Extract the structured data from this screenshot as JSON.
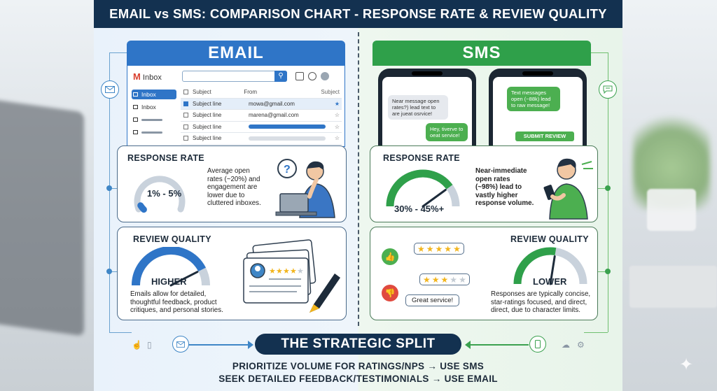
{
  "title": "EMAIL vs SMS: COMPARISON CHART - RESPONSE RATE & REVIEW QUALITY",
  "colors": {
    "navy": "#133150",
    "email_blue": "#2f75c7",
    "sms_green": "#2fa04a"
  },
  "email": {
    "header": "EMAIL",
    "inbox": {
      "app_label": "Inbox",
      "nav": [
        "Inbox",
        "Inbox"
      ],
      "columns": [
        "Subject",
        "From",
        "Subject"
      ],
      "rows": [
        {
          "subject": "Subject line",
          "from": "mowa@gmail.com",
          "starred": true
        },
        {
          "subject": "Subject line",
          "from": "marena@gmail.com",
          "starred": false
        },
        {
          "subject": "Subject line",
          "from": "",
          "starred": false
        },
        {
          "subject": "Subject line",
          "from": "",
          "starred": false
        }
      ]
    },
    "response": {
      "title": "RESPONSE RATE",
      "value": "1% - 5%",
      "gauge_fraction": 0.05,
      "desc_lines": [
        "Average open",
        "rates (~20%) and",
        "engagement are",
        "lower due to",
        "cluttered inboxes."
      ]
    },
    "quality": {
      "title": "REVIEW QUALITY",
      "label": "HIGHER",
      "gauge_fraction": 0.85,
      "desc_lines": [
        "Emails allow for detailed,",
        "thoughtful feedback, product",
        "critiques, and personal stories."
      ],
      "card_stars": 4
    }
  },
  "sms": {
    "header": "SMS",
    "phone1_msgs": [
      "Near message open rates?) lead text to are jueat osrvice!",
      "Hey, tiverve to oeat service!"
    ],
    "phone2_msgs": [
      "Text messages open (~88k) lead to raw message!"
    ],
    "submit_label": "SUBMIT REVIEW",
    "response": {
      "title": "RESPONSE RATE",
      "value": "30% - 45%+",
      "gauge_fraction": 0.8,
      "desc_lines": [
        "Near-immediate",
        "open rates",
        "(~98%) lead to",
        "vastly higher",
        "response volume."
      ]
    },
    "quality": {
      "title": "REVIEW QUALITY",
      "label": "LOWER",
      "gauge_fraction": 0.55,
      "ratings": [
        5,
        3
      ],
      "bubble_text": "Great service!",
      "desc_lines": [
        "Responses are typically concise,",
        "star-ratings focused, and direct,",
        "direct, due to character limits."
      ]
    }
  },
  "split": {
    "title": "THE STRATEGIC SPLIT",
    "line1": "PRIORITIZE VOLUME FOR RATINGS/NPS → USE SMS",
    "line2": "SEEK DETAILED FEEDBACK/TESTIMONIALS → USE EMAIL"
  }
}
